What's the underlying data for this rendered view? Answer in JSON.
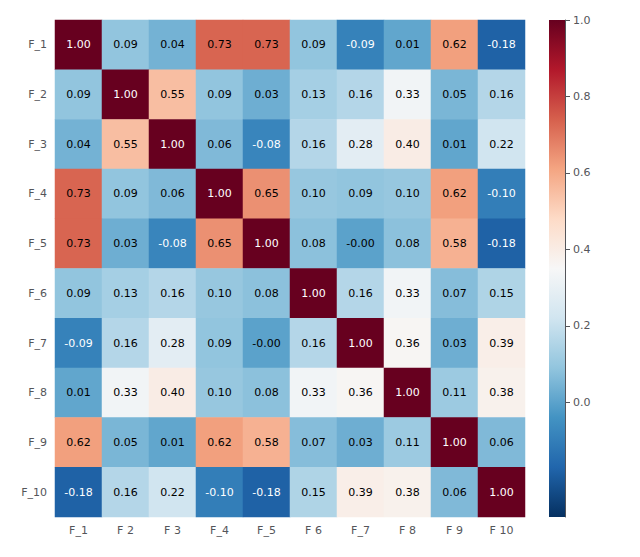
{
  "chart_data": {
    "type": "heatmap",
    "categories": [
      "F_1",
      "F 2",
      "F 3",
      "F_4",
      "F_5",
      "F 6",
      "F_7",
      "F 8",
      "F 9",
      "F 10"
    ],
    "y_categories": [
      "F_1",
      "F_2",
      "F_3",
      "F_4",
      "F_5",
      "F_6",
      "F_7",
      "F_8",
      "F_9",
      "F_10"
    ],
    "values": [
      [
        1.0,
        0.09,
        0.04,
        0.73,
        0.73,
        0.09,
        -0.09,
        0.01,
        0.62,
        -0.18
      ],
      [
        0.09,
        1.0,
        0.55,
        0.09,
        0.03,
        0.13,
        0.16,
        0.33,
        0.05,
        0.16
      ],
      [
        0.04,
        0.55,
        1.0,
        0.06,
        -0.08,
        0.16,
        0.28,
        0.4,
        0.01,
        0.22
      ],
      [
        0.73,
        0.09,
        0.06,
        1.0,
        0.65,
        0.1,
        0.09,
        0.1,
        0.62,
        -0.1
      ],
      [
        0.73,
        0.03,
        -0.08,
        0.65,
        1.0,
        0.08,
        -0.0,
        0.08,
        0.58,
        -0.18
      ],
      [
        0.09,
        0.13,
        0.16,
        0.1,
        0.08,
        1.0,
        0.16,
        0.33,
        0.07,
        0.15
      ],
      [
        -0.09,
        0.16,
        0.28,
        0.09,
        -0.0,
        0.16,
        1.0,
        0.36,
        0.03,
        0.39
      ],
      [
        0.01,
        0.33,
        0.4,
        0.1,
        0.08,
        0.33,
        0.36,
        1.0,
        0.11,
        0.38
      ],
      [
        0.62,
        0.05,
        0.01,
        0.62,
        0.58,
        0.07,
        0.03,
        0.11,
        1.0,
        0.06
      ],
      [
        -0.18,
        0.16,
        0.22,
        -0.1,
        -0.18,
        0.15,
        0.39,
        0.38,
        0.06,
        1.0
      ]
    ],
    "value_labels": [
      [
        "1.00",
        "0.09",
        "0.04",
        "0.73",
        "0.73",
        "0.09",
        "-0.09",
        "0.01",
        "0.62",
        "-0.18"
      ],
      [
        "0.09",
        "1.00",
        "0.55",
        "0.09",
        "0.03",
        "0.13",
        "0.16",
        "0.33",
        "0.05",
        "0.16"
      ],
      [
        "0.04",
        "0.55",
        "1.00",
        "0.06",
        "-0.08",
        "0.16",
        "0.28",
        "0.40",
        "0.01",
        "0.22"
      ],
      [
        "0.73",
        "0.09",
        "0.06",
        "1.00",
        "0.65",
        "0.10",
        "0.09",
        "0.10",
        "0.62",
        "-0.10"
      ],
      [
        "0.73",
        "0.03",
        "-0.08",
        "0.65",
        "1.00",
        "0.08",
        "-0.00",
        "0.08",
        "0.58",
        "-0.18"
      ],
      [
        "0.09",
        "0.13",
        "0.16",
        "0.10",
        "0.08",
        "1.00",
        "0.16",
        "0.33",
        "0.07",
        "0.15"
      ],
      [
        "-0.09",
        "0.16",
        "0.28",
        "0.09",
        "-0.00",
        "0.16",
        "1.00",
        "0.36",
        "0.03",
        "0.39"
      ],
      [
        "0.01",
        "0.33",
        "0.40",
        "0.10",
        "0.08",
        "0.33",
        "0.36",
        "1.00",
        "0.11",
        "0.38"
      ],
      [
        "0.62",
        "0.05",
        "0.01",
        "0.62",
        "0.58",
        "0.07",
        "0.03",
        "0.11",
        "1.00",
        "0.06"
      ],
      [
        "-0.18",
        "0.16",
        "0.22",
        "-0.10",
        "-0.18",
        "0.15",
        "0.39",
        "0.38",
        "0.06",
        "1.00"
      ]
    ],
    "data_labels": true,
    "grid": false,
    "colorbar": {
      "range": [
        -0.3,
        1.0
      ],
      "ticks": [
        {
          "value": 1.0,
          "label": "1.0"
        },
        0.8,
        0.6,
        0.4,
        0.2,
        {
          "value": 0.0,
          "label": "0.0"
        }
      ],
      "colors": [
        "#053061",
        "#2166ac",
        "#4393c3",
        "#92c5de",
        "#d1e5f0",
        "#f7f7f7",
        "#fddbc7",
        "#f4a582",
        "#d6604d",
        "#b2182b",
        "#67001f"
      ]
    }
  }
}
